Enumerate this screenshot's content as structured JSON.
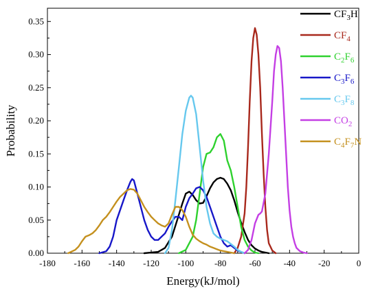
{
  "chart_data": {
    "type": "line",
    "title": "",
    "xlabel": "Energy(kJ/mol)",
    "ylabel": "Probability",
    "xlim": [
      -180,
      0
    ],
    "ylim": [
      0,
      0.37
    ],
    "xticks": [
      "-180",
      "-160",
      "-140",
      "-120",
      "-100",
      "-80",
      "-60",
      "-40",
      "-20",
      "0"
    ],
    "yticks": [
      "0.00",
      "0.05",
      "0.10",
      "0.15",
      "0.20",
      "0.25",
      "0.30",
      "0.35"
    ],
    "grid": false,
    "legend_position": "top-right",
    "series": [
      {
        "name": "CF3H",
        "name_parts": [
          "CF",
          "3",
          "H"
        ],
        "color": "#000000",
        "x": [
          -124,
          -116,
          -112,
          -108,
          -105,
          -102,
          -100,
          -98,
          -96,
          -94,
          -92,
          -90,
          -88,
          -86,
          -84,
          -82,
          -80,
          -78,
          -76,
          -74,
          -72,
          -70,
          -68,
          -66,
          -64,
          -62,
          -60,
          -58,
          -56,
          -54,
          -52
        ],
        "y": [
          0.0,
          0.002,
          0.008,
          0.025,
          0.05,
          0.075,
          0.09,
          0.093,
          0.088,
          0.08,
          0.075,
          0.076,
          0.086,
          0.098,
          0.107,
          0.112,
          0.114,
          0.112,
          0.105,
          0.095,
          0.08,
          0.062,
          0.046,
          0.032,
          0.02,
          0.012,
          0.007,
          0.004,
          0.002,
          0.001,
          0.0
        ]
      },
      {
        "name": "CF4",
        "name_parts": [
          "CF",
          "4",
          ""
        ],
        "color": "#a8281c",
        "x": [
          -72,
          -70,
          -68,
          -66,
          -65,
          -64,
          -63,
          -62,
          -61,
          -60,
          -59,
          -58,
          -57,
          -56,
          -55,
          -54,
          -53,
          -52,
          -50,
          -48
        ],
        "y": [
          0.0,
          0.008,
          0.025,
          0.06,
          0.1,
          0.16,
          0.23,
          0.29,
          0.325,
          0.34,
          0.33,
          0.3,
          0.25,
          0.18,
          0.12,
          0.07,
          0.035,
          0.015,
          0.004,
          0.0
        ]
      },
      {
        "name": "C2F6",
        "name_parts": [
          "C",
          "2",
          "F",
          "6"
        ],
        "color": "#2ed12e",
        "x": [
          -104,
          -100,
          -96,
          -94,
          -92,
          -90,
          -88,
          -86,
          -84,
          -82,
          -80,
          -78,
          -76,
          -74,
          -72,
          -70,
          -68,
          -66,
          -64,
          -62,
          -60,
          -58
        ],
        "y": [
          0.0,
          0.005,
          0.025,
          0.05,
          0.09,
          0.13,
          0.15,
          0.152,
          0.16,
          0.175,
          0.18,
          0.17,
          0.14,
          0.125,
          0.1,
          0.07,
          0.04,
          0.02,
          0.01,
          0.004,
          0.001,
          0.0
        ]
      },
      {
        "name": "C3F6",
        "name_parts": [
          "C",
          "3",
          "F",
          "6"
        ],
        "color": "#1717c8",
        "x": [
          -150,
          -146,
          -144,
          -142,
          -140,
          -138,
          -136,
          -134,
          -132,
          -131,
          -130,
          -128,
          -126,
          -124,
          -122,
          -120,
          -118,
          -116,
          -114,
          -112,
          -110,
          -108,
          -106,
          -104,
          -102,
          -100,
          -98,
          -96,
          -94,
          -92,
          -90,
          -88,
          -86,
          -84,
          -82,
          -80,
          -78,
          -76,
          -74,
          -72,
          -70,
          -68,
          -66
        ],
        "y": [
          0.0,
          0.003,
          0.01,
          0.025,
          0.05,
          0.065,
          0.08,
          0.095,
          0.108,
          0.112,
          0.11,
          0.09,
          0.07,
          0.05,
          0.035,
          0.025,
          0.02,
          0.02,
          0.025,
          0.03,
          0.04,
          0.048,
          0.055,
          0.055,
          0.05,
          0.07,
          0.083,
          0.09,
          0.098,
          0.1,
          0.095,
          0.085,
          0.07,
          0.055,
          0.04,
          0.025,
          0.015,
          0.01,
          0.012,
          0.008,
          0.004,
          0.002,
          0.0
        ]
      },
      {
        "name": "C3F8",
        "name_parts": [
          "C",
          "3",
          "F",
          "8"
        ],
        "color": "#66c8ee",
        "x": [
          -112,
          -110,
          -108,
          -106,
          -104,
          -102,
          -100,
          -98,
          -97,
          -96,
          -94,
          -92,
          -90,
          -88,
          -86,
          -84,
          -82,
          -80,
          -78,
          -76,
          -74,
          -72,
          -70,
          -68,
          -66
        ],
        "y": [
          0.0,
          0.008,
          0.035,
          0.08,
          0.13,
          0.18,
          0.215,
          0.235,
          0.238,
          0.235,
          0.21,
          0.16,
          0.11,
          0.07,
          0.045,
          0.03,
          0.025,
          0.022,
          0.02,
          0.018,
          0.014,
          0.01,
          0.005,
          0.002,
          0.0
        ]
      },
      {
        "name": "CO2",
        "name_parts": [
          "CO",
          "2",
          ""
        ],
        "color": "#c43ee4",
        "x": [
          -66,
          -64,
          -62,
          -60,
          -58,
          -57,
          -56,
          -54,
          -52,
          -50,
          -49,
          -48,
          -47,
          -46,
          -45,
          -44,
          -43,
          -42,
          -41,
          -40,
          -39,
          -38,
          -37,
          -36,
          -34,
          -32,
          -30
        ],
        "y": [
          0.0,
          0.005,
          0.02,
          0.045,
          0.058,
          0.06,
          0.063,
          0.09,
          0.15,
          0.23,
          0.275,
          0.3,
          0.313,
          0.31,
          0.29,
          0.25,
          0.2,
          0.15,
          0.1,
          0.065,
          0.04,
          0.025,
          0.015,
          0.008,
          0.003,
          0.001,
          0.0
        ]
      },
      {
        "name": "C4F7N",
        "name_parts": [
          "C",
          "4",
          "F",
          "7",
          "N"
        ],
        "color": "#c4901e",
        "x": [
          -168,
          -164,
          -162,
          -160,
          -158,
          -156,
          -154,
          -152,
          -150,
          -148,
          -146,
          -144,
          -142,
          -140,
          -138,
          -136,
          -134,
          -132,
          -130,
          -128,
          -126,
          -124,
          -122,
          -120,
          -118,
          -116,
          -114,
          -112,
          -110,
          -108,
          -106,
          -104,
          -102,
          -100,
          -98,
          -96,
          -94,
          -92,
          -90,
          -88,
          -86,
          -84,
          -82,
          -80,
          -78,
          -76,
          -74,
          -72
        ],
        "y": [
          0.0,
          0.005,
          0.01,
          0.018,
          0.025,
          0.027,
          0.03,
          0.035,
          0.042,
          0.05,
          0.055,
          0.062,
          0.07,
          0.078,
          0.085,
          0.09,
          0.095,
          0.097,
          0.096,
          0.09,
          0.08,
          0.07,
          0.062,
          0.055,
          0.05,
          0.045,
          0.042,
          0.04,
          0.045,
          0.058,
          0.07,
          0.07,
          0.065,
          0.055,
          0.04,
          0.028,
          0.022,
          0.018,
          0.015,
          0.013,
          0.01,
          0.008,
          0.006,
          0.004,
          0.003,
          0.002,
          0.001,
          0.0
        ]
      }
    ]
  }
}
